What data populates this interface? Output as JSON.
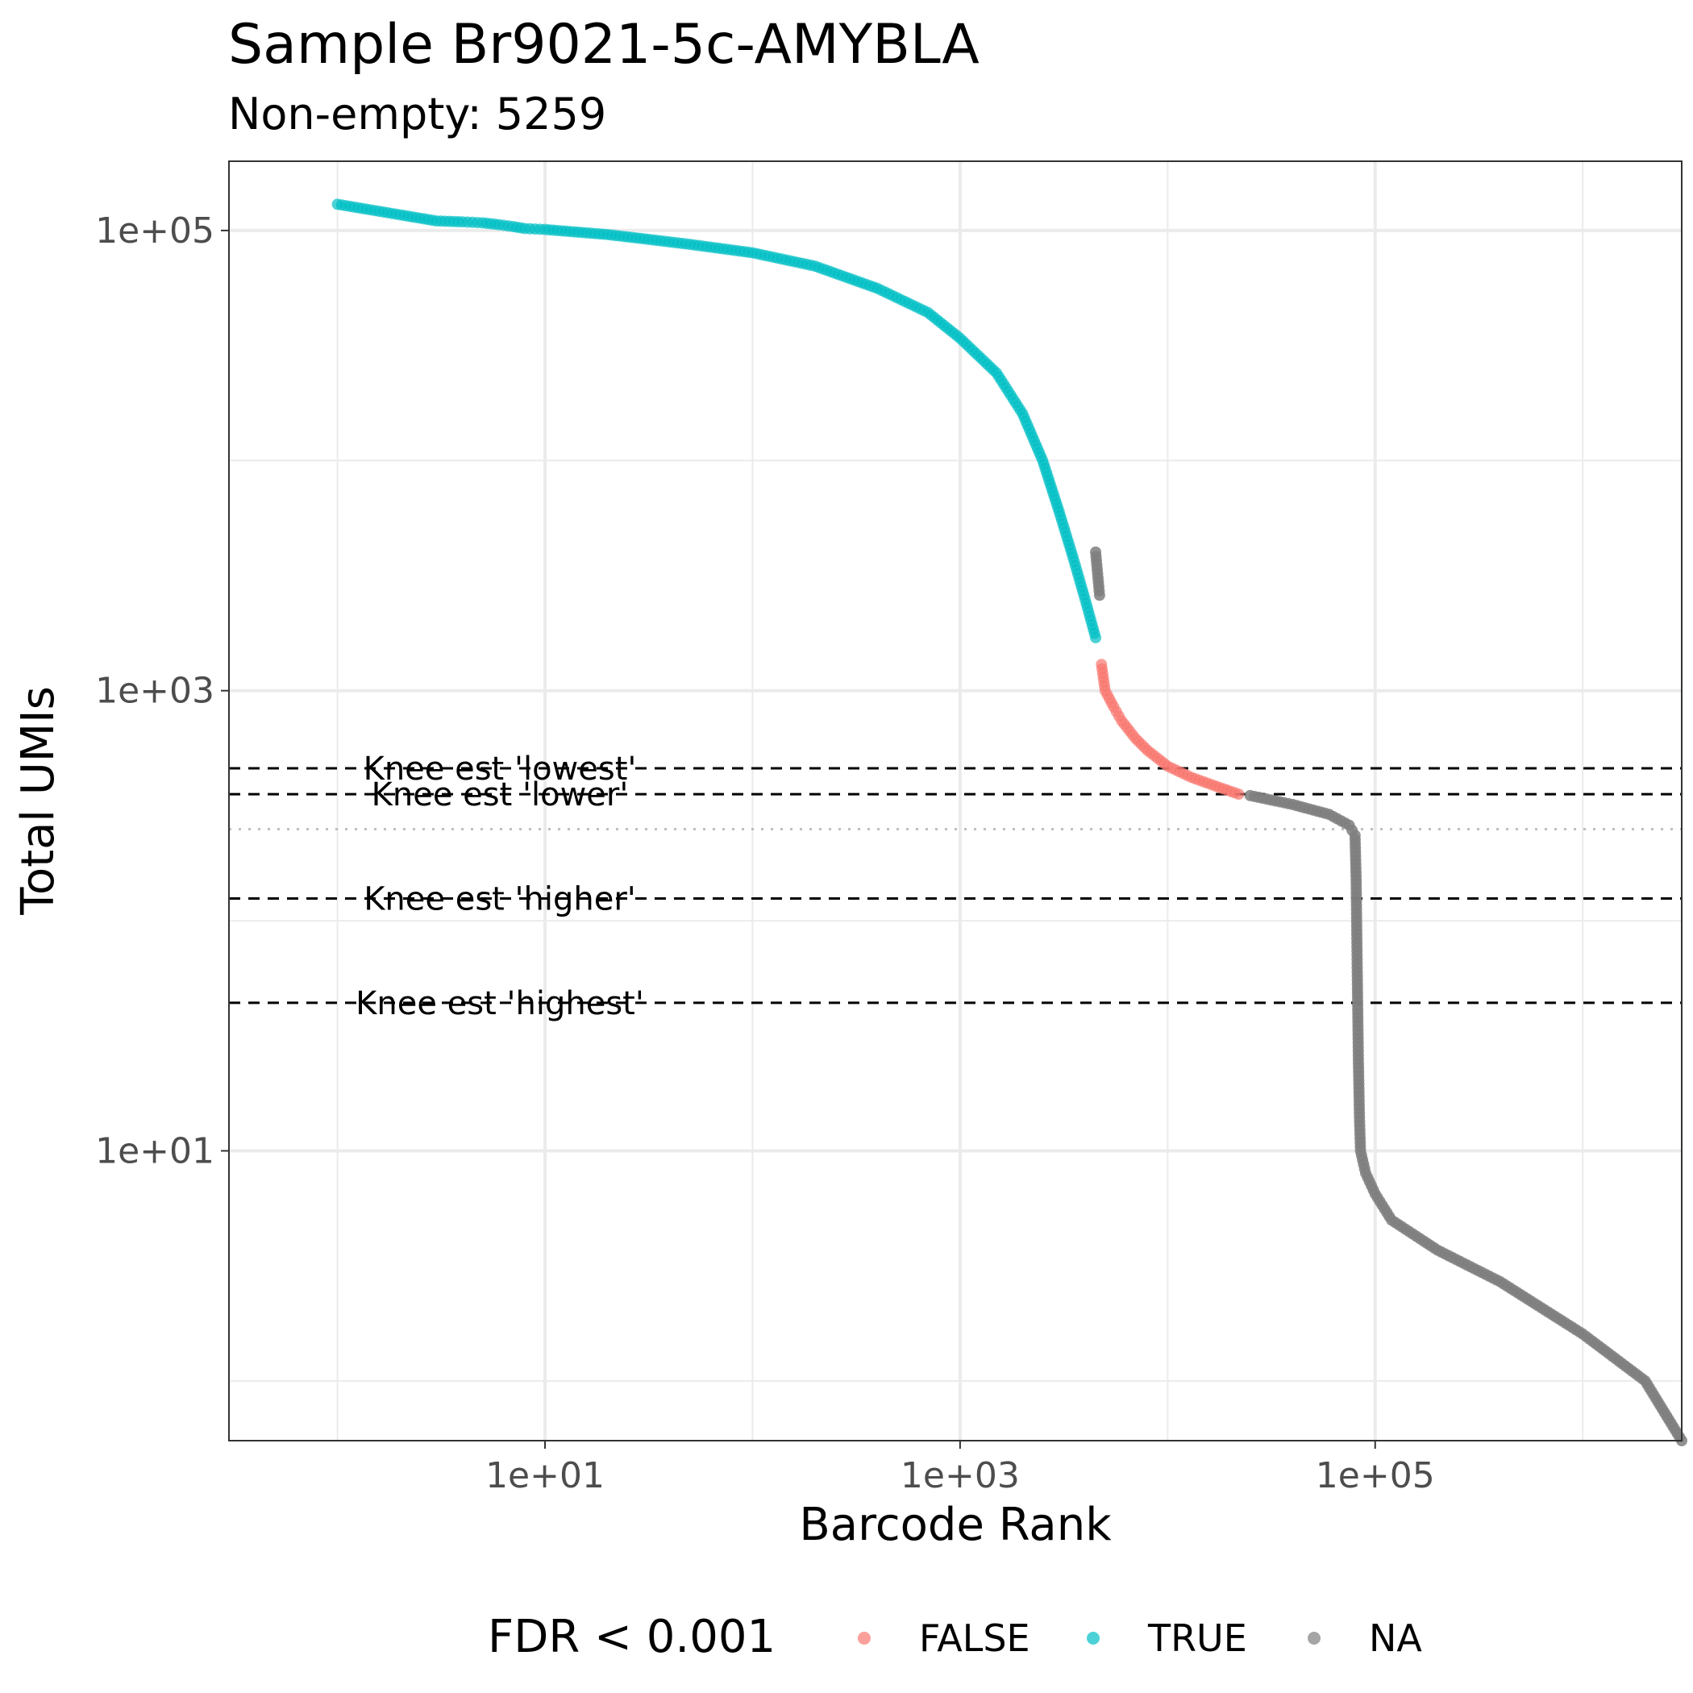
{
  "chart_data": {
    "type": "scatter",
    "title": "Sample Br9021-5c-AMYBLA",
    "subtitle": "Non-empty: 5259",
    "xlabel": "Barcode Rank",
    "ylabel": "Total UMIs",
    "x_scale": "log10",
    "y_scale": "log10",
    "xlim": [
      0.3,
      3000000
    ],
    "ylim": [
      0.55,
      200000
    ],
    "x_ticks": [
      "1e+01",
      "1e+03",
      "1e+05"
    ],
    "y_ticks": [
      "1e+01",
      "1e+03",
      "1e+05"
    ],
    "grid": true,
    "legend": {
      "title": "FDR < 0.001",
      "position": "bottom",
      "entries": [
        "FALSE",
        "TRUE",
        "NA"
      ]
    },
    "colors": {
      "FALSE": "#F8766D",
      "TRUE": "#00BFC4",
      "NA": "#7f7f7f"
    },
    "reference_lines": [
      {
        "label": "Knee est 'lowest'",
        "y": 460,
        "style": "dashed"
      },
      {
        "label": "Knee est 'lower'",
        "y": 355,
        "style": "dashed"
      },
      {
        "label": "Knee est 'higher'",
        "y": 125,
        "style": "dashed"
      },
      {
        "label": "Knee est 'highest'",
        "y": 44,
        "style": "dashed"
      },
      {
        "label": "",
        "y": 250,
        "style": "dotted"
      }
    ],
    "series": [
      {
        "name": "TRUE",
        "points": [
          [
            1,
            130000
          ],
          [
            2,
            117000
          ],
          [
            3,
            110000
          ],
          [
            4,
            109000
          ],
          [
            5,
            108000
          ],
          [
            6,
            106000
          ],
          [
            7,
            104000
          ],
          [
            8,
            102000
          ],
          [
            10,
            101000
          ],
          [
            20,
            96000
          ],
          [
            30,
            92000
          ],
          [
            50,
            87000
          ],
          [
            100,
            80000
          ],
          [
            200,
            70000
          ],
          [
            400,
            56000
          ],
          [
            700,
            44000
          ],
          [
            1000,
            34000
          ],
          [
            1500,
            24000
          ],
          [
            2000,
            16000
          ],
          [
            2500,
            10000
          ],
          [
            3000,
            6000
          ],
          [
            3500,
            3800
          ],
          [
            4000,
            2500
          ],
          [
            4500,
            1700
          ]
        ]
      },
      {
        "name": "FALSE",
        "points": [
          [
            4800,
            1300
          ],
          [
            5000,
            1000
          ],
          [
            5500,
            850
          ],
          [
            6000,
            740
          ],
          [
            7000,
            620
          ],
          [
            8000,
            550
          ],
          [
            10000,
            470
          ],
          [
            13000,
            420
          ],
          [
            17000,
            385
          ],
          [
            22000,
            355
          ]
        ]
      },
      {
        "name": "NA",
        "points": [
          [
            4500,
            4000
          ],
          [
            4700,
            2600
          ],
          [
            25000,
            350
          ],
          [
            40000,
            320
          ],
          [
            60000,
            290
          ],
          [
            75000,
            260
          ],
          [
            80000,
            235
          ],
          [
            81000,
            150
          ],
          [
            82000,
            60
          ],
          [
            83000,
            25
          ],
          [
            84000,
            14
          ],
          [
            85000,
            10
          ],
          [
            90000,
            8
          ],
          [
            100000,
            6.5
          ],
          [
            120000,
            5
          ],
          [
            200000,
            3.7
          ],
          [
            400000,
            2.7
          ],
          [
            1000000,
            1.6
          ],
          [
            2000000,
            1
          ],
          [
            3000000,
            0.55
          ]
        ]
      }
    ]
  }
}
